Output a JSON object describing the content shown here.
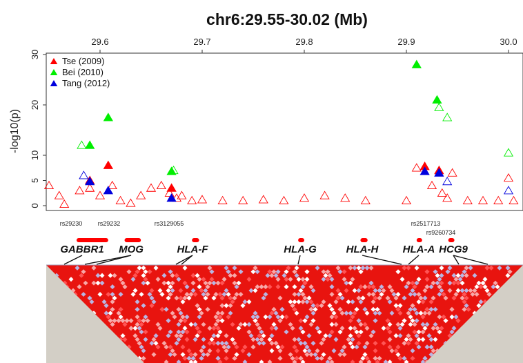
{
  "chart_data": {
    "type": "scatter",
    "title": "chr6:29.55-30.02 (Mb)",
    "xlabel": "",
    "ylabel": "-log10(p)",
    "xlim": [
      29.55,
      30.02
    ],
    "ylim": [
      0,
      30
    ],
    "x_ticks": [
      "29.6",
      "29.7",
      "29.8",
      "29.9",
      "30.0"
    ],
    "y_ticks": [
      "0",
      "5",
      "10",
      "20",
      "30"
    ],
    "legend_position": "top-left",
    "series": [
      {
        "name": "Tse (2009)",
        "color": "#ff0000",
        "filled": [
          [
            29.59,
            5.0
          ],
          [
            29.608,
            8.0
          ],
          [
            29.67,
            3.5
          ],
          [
            29.918,
            7.8
          ],
          [
            29.932,
            7.0
          ]
        ],
        "open": [
          [
            29.55,
            4.0
          ],
          [
            29.56,
            2.0
          ],
          [
            29.565,
            0.3
          ],
          [
            29.58,
            3.0
          ],
          [
            29.59,
            3.5
          ],
          [
            29.6,
            2.0
          ],
          [
            29.612,
            4.0
          ],
          [
            29.62,
            1.0
          ],
          [
            29.63,
            0.5
          ],
          [
            29.64,
            2.0
          ],
          [
            29.65,
            3.5
          ],
          [
            29.66,
            4.0
          ],
          [
            29.668,
            2.5
          ],
          [
            29.675,
            1.5
          ],
          [
            29.68,
            2.0
          ],
          [
            29.69,
            1.0
          ],
          [
            29.7,
            1.2
          ],
          [
            29.72,
            1.0
          ],
          [
            29.74,
            1.0
          ],
          [
            29.76,
            1.2
          ],
          [
            29.78,
            1.0
          ],
          [
            29.8,
            1.5
          ],
          [
            29.82,
            2.0
          ],
          [
            29.84,
            1.5
          ],
          [
            29.86,
            1.0
          ],
          [
            29.9,
            1.0
          ],
          [
            29.91,
            7.5
          ],
          [
            29.925,
            4.0
          ],
          [
            29.935,
            2.5
          ],
          [
            29.94,
            1.5
          ],
          [
            29.945,
            6.5
          ],
          [
            29.96,
            1.0
          ],
          [
            29.975,
            1.0
          ],
          [
            29.99,
            1.0
          ],
          [
            30.0,
            5.5
          ],
          [
            30.005,
            1.0
          ]
        ]
      },
      {
        "name": "Bei (2010)",
        "color": "#00ee00",
        "filled": [
          [
            29.59,
            12.0
          ],
          [
            29.608,
            17.5
          ],
          [
            29.67,
            6.8
          ],
          [
            29.91,
            28.0
          ],
          [
            29.93,
            21.0
          ]
        ],
        "open": [
          [
            29.582,
            12.0
          ],
          [
            29.672,
            7.0
          ],
          [
            29.932,
            19.5
          ],
          [
            29.94,
            17.5
          ],
          [
            30.0,
            10.5
          ]
        ]
      },
      {
        "name": "Tang (2012)",
        "color": "#0000dd",
        "filled": [
          [
            29.59,
            4.8
          ],
          [
            29.608,
            3.0
          ],
          [
            29.67,
            1.5
          ],
          [
            29.918,
            6.8
          ],
          [
            29.932,
            6.5
          ]
        ],
        "open": [
          [
            29.584,
            6.0
          ],
          [
            29.94,
            4.8
          ],
          [
            30.0,
            3.0
          ]
        ]
      }
    ],
    "snp_labels": [
      {
        "name": "rs29230",
        "x": 29.59
      },
      {
        "name": "rs29232",
        "x": 29.608
      },
      {
        "name": "rs3129055",
        "x": 29.67
      },
      {
        "name": "rs2517713",
        "x": 29.918
      },
      {
        "name": "rs9260734",
        "x": 29.935
      }
    ],
    "genes": [
      {
        "name": "GABBR1",
        "start": 29.577,
        "end": 29.608
      },
      {
        "name": "MOG",
        "start": 29.624,
        "end": 29.64
      },
      {
        "name": "HLA-F",
        "start": 29.69,
        "end": 29.697
      },
      {
        "name": "HLA-G",
        "start": 29.794,
        "end": 29.8
      },
      {
        "name": "HLA-H",
        "start": 29.855,
        "end": 29.862
      },
      {
        "name": "HLA-A",
        "start": 29.91,
        "end": 29.915
      },
      {
        "name": "HCG9",
        "start": 29.941,
        "end": 29.947
      }
    ],
    "ld_heatmap": {
      "type": "heatmap",
      "colors": [
        "#ff0000",
        "#ffffff",
        "#b3b3e6"
      ]
    }
  }
}
